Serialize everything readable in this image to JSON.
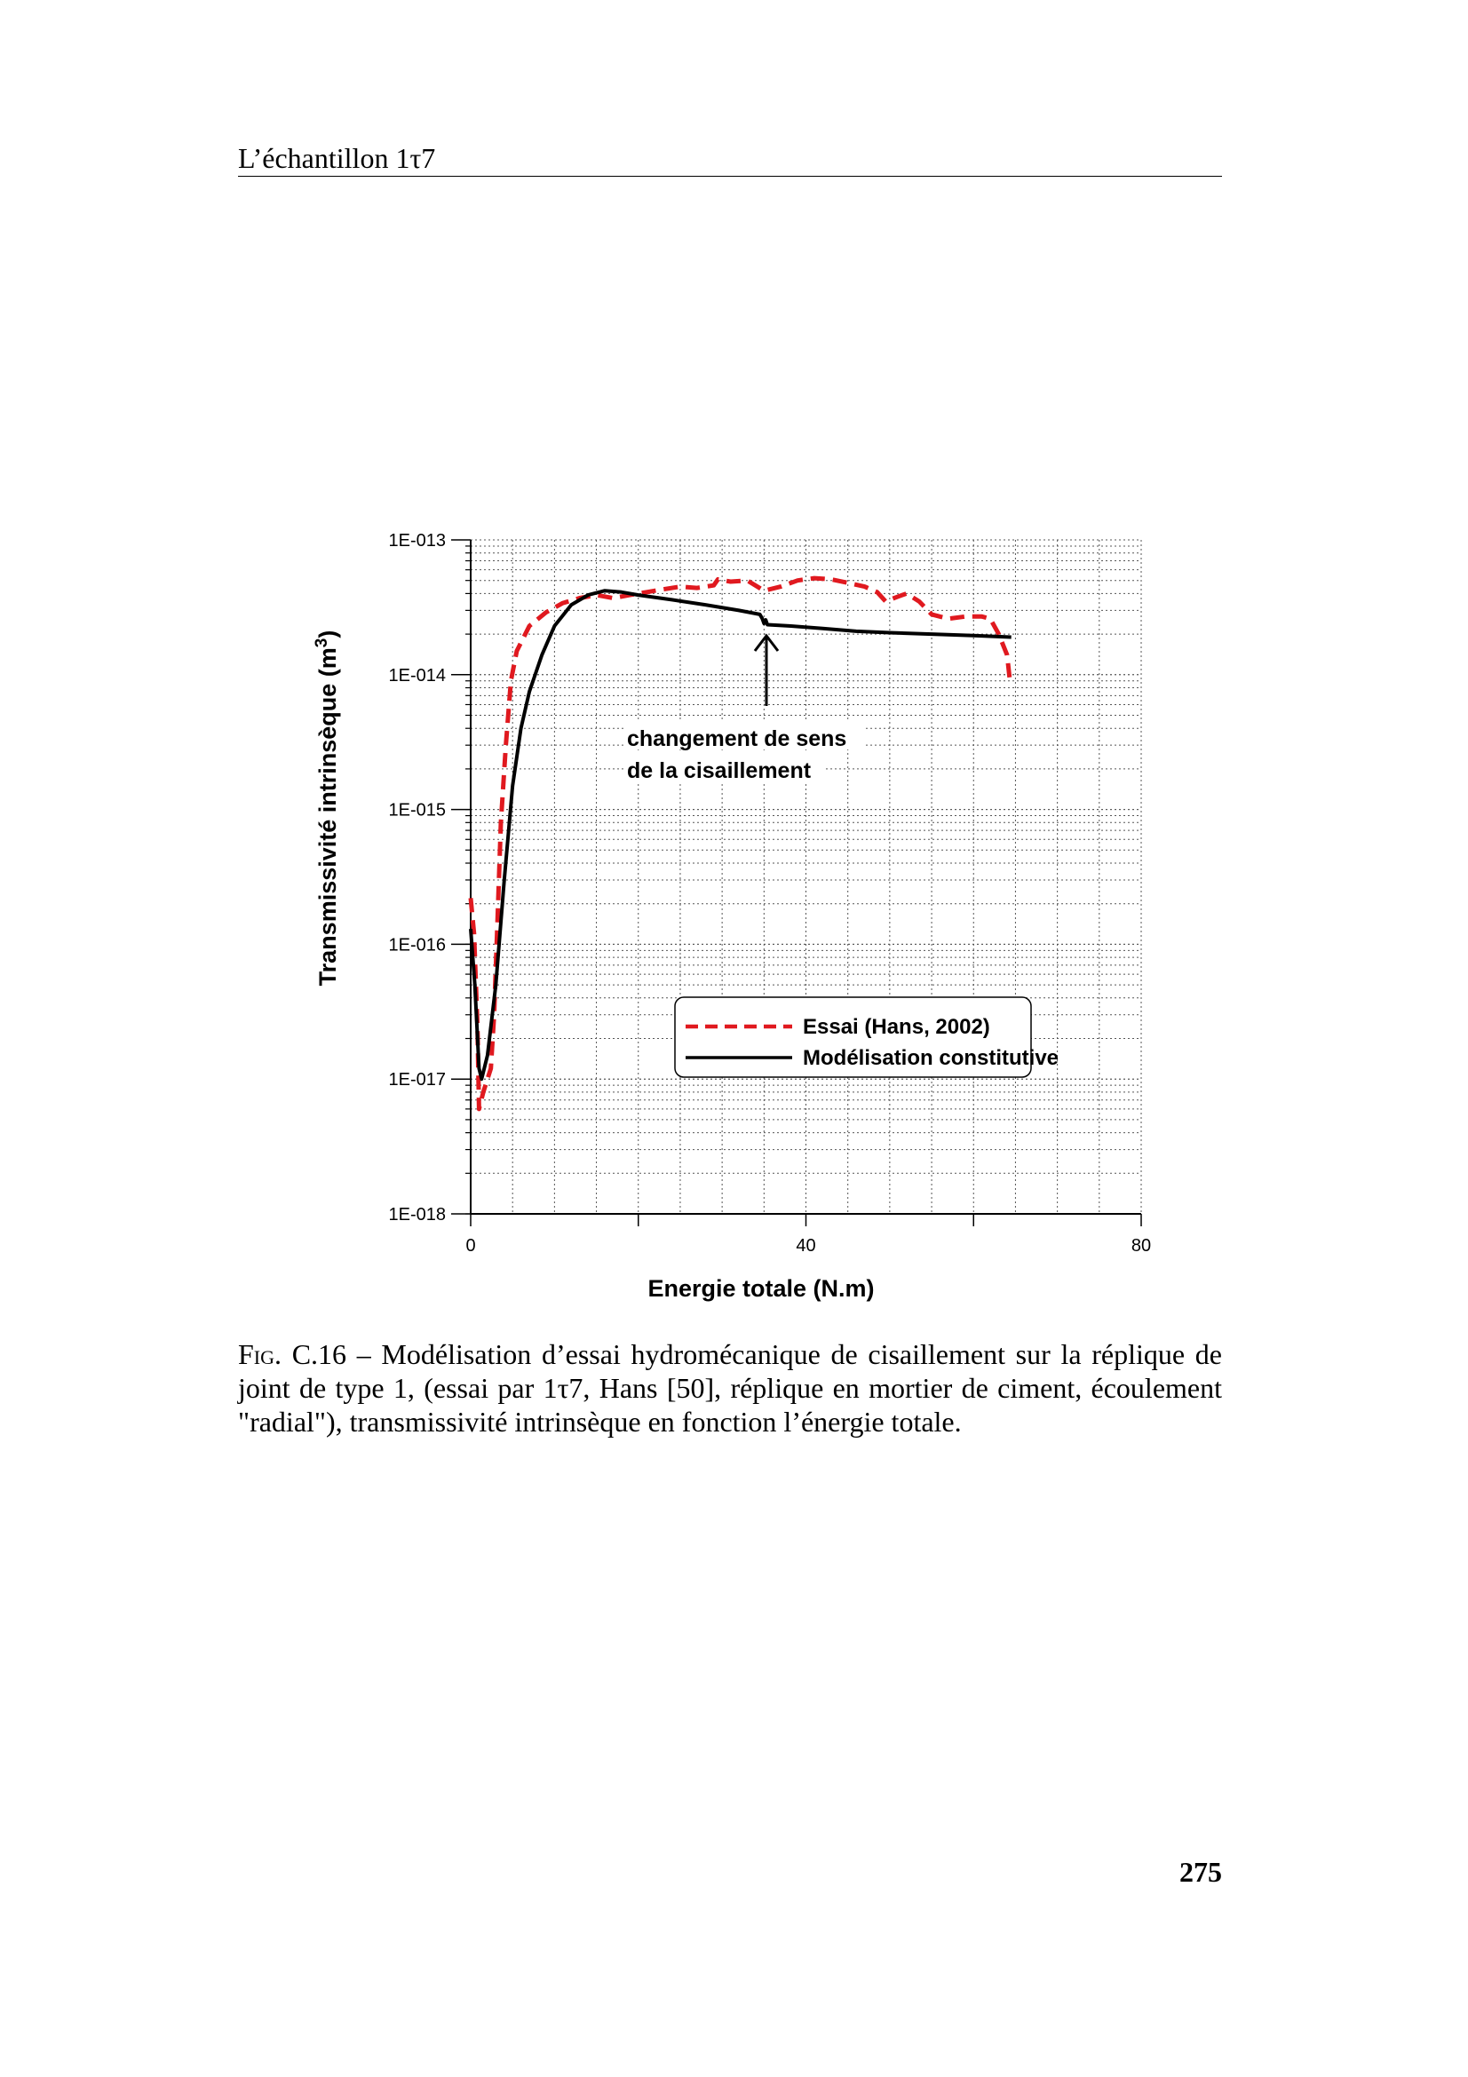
{
  "header": {
    "running_title": "L’échantillon 1τ7"
  },
  "chart_data": {
    "type": "line",
    "title": "",
    "xlabel": "Energie totale (N.m)",
    "ylabel": "Transmissivité intrinsèque (m3)",
    "ylabel_main": "Transmissivité intrinsèque (m",
    "ylabel_sup": "3",
    "ylabel_close": ")",
    "x_ticks": [
      "0",
      "40",
      "80"
    ],
    "y_ticks": [
      "1E-018",
      "1E-017",
      "1E-016",
      "1E-015",
      "1E-014",
      "1E-013"
    ],
    "xlim": [
      0,
      80
    ],
    "ylim": [
      1e-18,
      1e-13
    ],
    "y_scale": "log",
    "grid": true,
    "legend_position": "bottom-right",
    "annotation": {
      "line1": "changement de sens",
      "line2": "de la cisaillement",
      "arrow_to": [
        35,
        2.8e-14
      ]
    },
    "series": [
      {
        "name": "Essai (Hans, 2002)",
        "style": "dashed",
        "color": "#e0191f",
        "points": [
          [
            0,
            2.2e-16
          ],
          [
            0.4,
            1.2e-16
          ],
          [
            0.8,
            2.5e-17
          ],
          [
            1.0,
            6e-18
          ],
          [
            1.5,
            8e-18
          ],
          [
            2.0,
            1e-17
          ],
          [
            2.4,
            1.2e-17
          ],
          [
            2.8,
            3e-17
          ],
          [
            3.2,
            1.5e-16
          ],
          [
            3.6,
            8e-16
          ],
          [
            4.2,
            3e-15
          ],
          [
            4.8,
            9e-15
          ],
          [
            5.5,
            1.5e-14
          ],
          [
            7,
            2.3e-14
          ],
          [
            9,
            2.9e-14
          ],
          [
            11,
            3.4e-14
          ],
          [
            13,
            3.7e-14
          ],
          [
            15,
            3.9e-14
          ],
          [
            17,
            3.7e-14
          ],
          [
            19,
            3.9e-14
          ],
          [
            21,
            4.1e-14
          ],
          [
            23,
            4.3e-14
          ],
          [
            25,
            4.5e-14
          ],
          [
            27,
            4.4e-14
          ],
          [
            29,
            4.6e-14
          ],
          [
            29.5,
            5.1e-14
          ],
          [
            31,
            4.9e-14
          ],
          [
            33,
            5e-14
          ],
          [
            35,
            4.2e-14
          ],
          [
            37,
            4.5e-14
          ],
          [
            39,
            5e-14
          ],
          [
            41,
            5.2e-14
          ],
          [
            43,
            5.1e-14
          ],
          [
            45,
            4.8e-14
          ],
          [
            47,
            4.5e-14
          ],
          [
            48.5,
            4.1e-14
          ],
          [
            49.5,
            3.5e-14
          ],
          [
            51,
            3.8e-14
          ],
          [
            52,
            4e-14
          ],
          [
            53.5,
            3.5e-14
          ],
          [
            55,
            2.8e-14
          ],
          [
            57,
            2.6e-14
          ],
          [
            59,
            2.7e-14
          ],
          [
            61,
            2.7e-14
          ],
          [
            62,
            2.6e-14
          ],
          [
            63,
            2e-14
          ],
          [
            64,
            1.4e-14
          ],
          [
            64.3,
            9.5e-15
          ]
        ]
      },
      {
        "name": "Modélisation constitutive",
        "style": "solid",
        "color": "#000000",
        "points": [
          [
            0,
            1.3e-16
          ],
          [
            0.5,
            5e-17
          ],
          [
            1.0,
            1.2e-17
          ],
          [
            1.3,
            1e-17
          ],
          [
            2.0,
            1.5e-17
          ],
          [
            3.0,
            5e-17
          ],
          [
            4.0,
            3e-16
          ],
          [
            5.0,
            1.5e-15
          ],
          [
            6.0,
            4e-15
          ],
          [
            7.0,
            7.5e-15
          ],
          [
            8.5,
            1.4e-14
          ],
          [
            10,
            2.3e-14
          ],
          [
            12,
            3.3e-14
          ],
          [
            14,
            3.9e-14
          ],
          [
            16,
            4.2e-14
          ],
          [
            18,
            4.1e-14
          ],
          [
            20,
            3.9e-14
          ],
          [
            24,
            3.6e-14
          ],
          [
            28,
            3.3e-14
          ],
          [
            32,
            3e-14
          ],
          [
            34.5,
            2.8e-14
          ],
          [
            34.8,
            2.6e-14
          ],
          [
            35.0,
            2.4e-14
          ],
          [
            35.2,
            2.55e-14
          ],
          [
            35.4,
            2.35e-14
          ],
          [
            38,
            2.3e-14
          ],
          [
            42,
            2.2e-14
          ],
          [
            46,
            2.1e-14
          ],
          [
            50,
            2.05e-14
          ],
          [
            55,
            2e-14
          ],
          [
            60,
            1.95e-14
          ],
          [
            64.5,
            1.9e-14
          ]
        ]
      }
    ]
  },
  "caption": {
    "label": "Fig. C.16",
    "text": " – Modélisation d’essai hydromécanique de cisaillement sur la réplique de joint de type 1, (essai par 1τ7, Hans [50], réplique en mortier de ciment, écoulement \"radial\"), transmissivité intrinsèque en fonction l’énergie totale."
  },
  "page_number": "275"
}
